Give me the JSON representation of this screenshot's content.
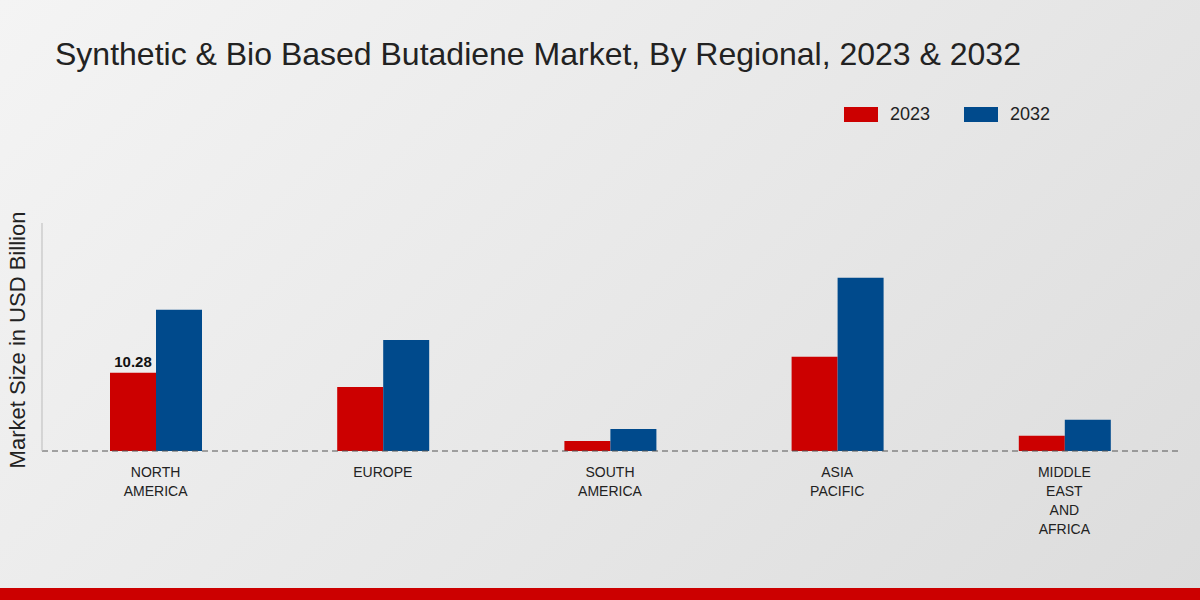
{
  "chart_data": {
    "type": "bar",
    "title": "Synthetic & Bio Based Butadiene Market, By Regional, 2023 & 2032",
    "y_label": "Market Size in USD Billion",
    "categories": [
      "NORTH AMERICA",
      "EUROPE",
      "SOUTH AMERICA",
      "ASIA PACIFIC",
      "MIDDLE EAST AND AFRICA"
    ],
    "series": [
      {
        "name": "2023",
        "color": "#cc0000",
        "values": [
          10.28,
          8.43,
          1.32,
          12.4,
          2.0
        ],
        "value_labels": [
          "10.28",
          null,
          null,
          null,
          null
        ]
      },
      {
        "name": "2032",
        "color": "#004a8c",
        "values": [
          18.58,
          14.6,
          2.9,
          22.8,
          4.1
        ]
      }
    ],
    "ylim": [
      0,
      30
    ],
    "yticks": [],
    "tick_labels": "x",
    "grid": false,
    "legend": "top right"
  }
}
